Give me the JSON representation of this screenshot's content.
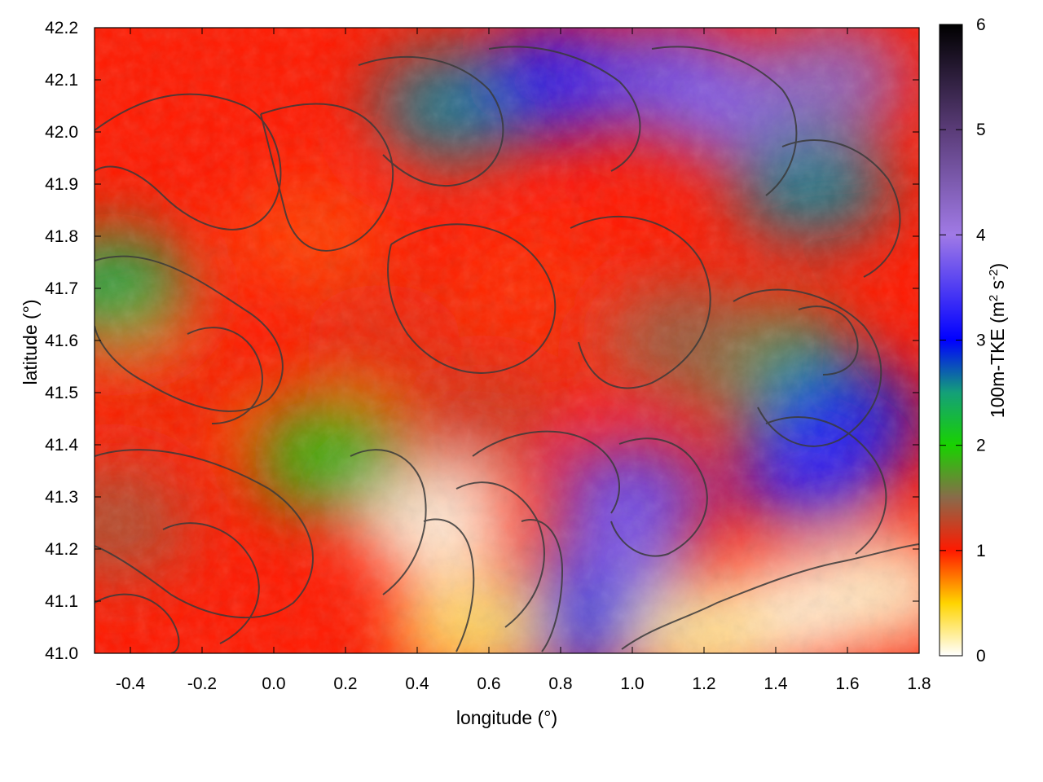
{
  "chart_data": {
    "type": "heatmap",
    "title": "",
    "xlabel": "longitude (°)",
    "ylabel": "latitude (°)",
    "xlim": [
      -0.5,
      1.8
    ],
    "ylim": [
      41.0,
      42.2
    ],
    "x_ticks": [
      "-0.4",
      "-0.2",
      "0.0",
      "0.2",
      "0.4",
      "0.6",
      "0.8",
      "1.0",
      "1.2",
      "1.4",
      "1.6",
      "1.8"
    ],
    "x_tick_values": [
      -0.4,
      -0.2,
      0.0,
      0.2,
      0.4,
      0.6,
      0.8,
      1.0,
      1.2,
      1.4,
      1.6,
      1.8
    ],
    "y_ticks": [
      "41.0",
      "41.1",
      "41.2",
      "41.3",
      "41.4",
      "41.5",
      "41.6",
      "41.7",
      "41.8",
      "41.9",
      "42.0",
      "42.1",
      "42.2"
    ],
    "y_tick_values": [
      41.0,
      41.1,
      41.2,
      41.3,
      41.4,
      41.5,
      41.6,
      41.7,
      41.8,
      41.9,
      42.0,
      42.1,
      42.2
    ],
    "colorbar": {
      "range": [
        0,
        6
      ],
      "ticks": [
        "0",
        "1",
        "2",
        "3",
        "4",
        "5",
        "6"
      ],
      "tick_values": [
        0,
        1,
        2,
        3,
        4,
        5,
        6
      ],
      "label_main": "100m-TKE (m",
      "label_sup1": "2",
      "label_mid": " s",
      "label_sup2": "-2",
      "label_end": ")",
      "palette": [
        {
          "v": 0.0,
          "color": "#ffffff"
        },
        {
          "v": 0.5,
          "color": "#ffd400"
        },
        {
          "v": 1.0,
          "color": "#ff1a00"
        },
        {
          "v": 1.5,
          "color": "#8a6a4a"
        },
        {
          "v": 2.0,
          "color": "#19d200"
        },
        {
          "v": 2.5,
          "color": "#14a078"
        },
        {
          "v": 3.0,
          "color": "#0000ff"
        },
        {
          "v": 4.0,
          "color": "#a07ae6"
        },
        {
          "v": 5.0,
          "color": "#5a3c78"
        },
        {
          "v": 6.0,
          "color": "#000000"
        }
      ]
    },
    "field_regions": [
      {
        "lon": -0.3,
        "lat": 41.5,
        "tke": 1.05
      },
      {
        "lon": 0.1,
        "lat": 41.8,
        "tke": 0.9
      },
      {
        "lon": 0.3,
        "lat": 41.6,
        "tke": 1.1
      },
      {
        "lon": 0.7,
        "lat": 41.7,
        "tke": 0.95
      },
      {
        "lon": 1.0,
        "lat": 41.6,
        "tke": 1.05
      },
      {
        "lon": 0.6,
        "lat": 41.45,
        "tke": 1.2
      },
      {
        "lon": 0.5,
        "lat": 42.05,
        "tke": 2.6
      },
      {
        "lon": 0.8,
        "lat": 42.1,
        "tke": 3.2
      },
      {
        "lon": 1.1,
        "lat": 42.1,
        "tke": 3.6
      },
      {
        "lon": 1.3,
        "lat": 42.05,
        "tke": 3.8
      },
      {
        "lon": 1.55,
        "lat": 42.1,
        "tke": 4.3
      },
      {
        "lon": 1.5,
        "lat": 41.9,
        "tke": 2.6
      },
      {
        "lon": 1.4,
        "lat": 41.55,
        "tke": 2.4
      },
      {
        "lon": 1.6,
        "lat": 41.45,
        "tke": 2.9
      },
      {
        "lon": 1.5,
        "lat": 41.35,
        "tke": 3.3
      },
      {
        "lon": 1.0,
        "lat": 41.3,
        "tke": 3.6
      },
      {
        "lon": 0.95,
        "lat": 41.15,
        "tke": 3.8
      },
      {
        "lon": 0.85,
        "lat": 41.05,
        "tke": 2.9
      },
      {
        "lon": 0.55,
        "lat": 41.05,
        "tke": 0.3
      },
      {
        "lon": 0.45,
        "lat": 41.25,
        "tke": 0.05
      },
      {
        "lon": 1.45,
        "lat": 41.08,
        "tke": 0.05
      },
      {
        "lon": 1.7,
        "lat": 41.12,
        "tke": 0.1
      },
      {
        "lon": 1.2,
        "lat": 41.03,
        "tke": 0.2
      },
      {
        "lon": -0.45,
        "lat": 41.7,
        "tke": 2.3
      },
      {
        "lon": 0.15,
        "lat": 41.38,
        "tke": 1.9
      },
      {
        "lon": -0.45,
        "lat": 41.25,
        "tke": 1.35
      },
      {
        "lon": 1.15,
        "lat": 41.6,
        "tke": 1.45
      }
    ]
  }
}
